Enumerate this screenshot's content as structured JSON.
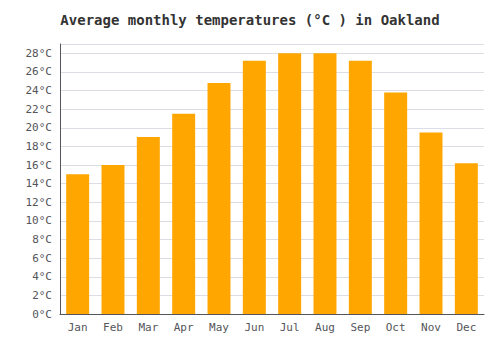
{
  "chart_data": {
    "type": "bar",
    "title": "Average monthly temperatures (°C ) in Oakland",
    "categories": [
      "Jan",
      "Feb",
      "Mar",
      "Apr",
      "May",
      "Jun",
      "Jul",
      "Aug",
      "Sep",
      "Oct",
      "Nov",
      "Dec"
    ],
    "values": [
      15,
      16,
      19,
      21.5,
      24.8,
      27.2,
      28,
      28,
      27.2,
      23.8,
      19.5,
      16.2
    ],
    "color": "#FFA600",
    "ylim": [
      0,
      29
    ],
    "yticks": [
      {
        "value": 0,
        "label": "0°C"
      },
      {
        "value": 2,
        "label": "2°C"
      },
      {
        "value": 4,
        "label": "4°C"
      },
      {
        "value": 6,
        "label": "6°C"
      },
      {
        "value": 8,
        "label": "8°C"
      },
      {
        "value": 10,
        "label": "10°C"
      },
      {
        "value": 12,
        "label": "12°C"
      },
      {
        "value": 14,
        "label": "14°C"
      },
      {
        "value": 16,
        "label": "16°C"
      },
      {
        "value": 18,
        "label": "18°C"
      },
      {
        "value": 20,
        "label": "20°C"
      },
      {
        "value": 22,
        "label": "22°C"
      },
      {
        "value": 24,
        "label": "24°C"
      },
      {
        "value": 26,
        "label": "26°C"
      },
      {
        "value": 28,
        "label": "28°C"
      }
    ],
    "grid": true
  }
}
